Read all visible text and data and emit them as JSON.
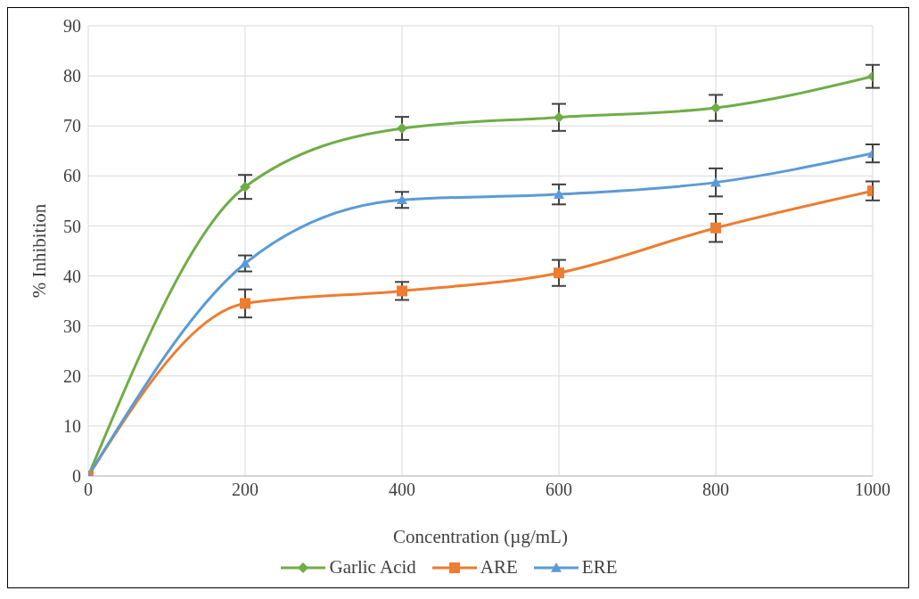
{
  "chart_data": {
    "type": "line",
    "xlabel": "Concentration (µg/mL)",
    "ylabel": "% Inhibition",
    "x": [
      0,
      200,
      400,
      600,
      800,
      1000
    ],
    "xlim": [
      0,
      1000
    ],
    "xticks": [
      0,
      200,
      400,
      600,
      800,
      1000
    ],
    "ylim": [
      0,
      90
    ],
    "yticks": [
      0,
      10,
      20,
      30,
      40,
      50,
      60,
      70,
      80,
      90
    ],
    "grid": true,
    "legend": "bottom",
    "series": [
      {
        "name": "Garlic Acid",
        "color": "#70ad47",
        "marker": "diamond",
        "values": [
          0,
          57.8,
          69.5,
          71.7,
          73.6,
          79.9
        ],
        "errors": [
          null,
          2.4,
          2.3,
          2.7,
          2.6,
          2.3
        ]
      },
      {
        "name": "ARE",
        "color": "#ed7d31",
        "marker": "square",
        "values": [
          0,
          34.5,
          37,
          40.6,
          49.6,
          57
        ],
        "errors": [
          null,
          2.8,
          1.8,
          2.6,
          2.8,
          1.9
        ]
      },
      {
        "name": "ERE",
        "color": "#5b9bd5",
        "marker": "triangle",
        "values": [
          0,
          42.5,
          55.2,
          56.3,
          58.7,
          64.5
        ],
        "errors": [
          null,
          1.6,
          1.6,
          2,
          2.8,
          1.8
        ]
      }
    ]
  }
}
